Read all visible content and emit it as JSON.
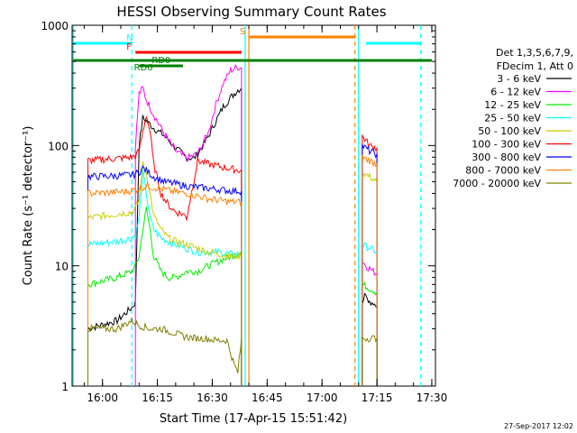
{
  "chart_data": {
    "type": "line",
    "title": "HESSI Observing Summary Count Rates",
    "xlabel": "Start Time (17-Apr-15 15:51:42)",
    "ylabel": "Count Rate (s⁻¹ detector⁻¹)",
    "yscale": "log",
    "ylim": [
      1,
      1000
    ],
    "xlim": [
      "15:51:42",
      "17:31:00"
    ],
    "x_ticks": [
      "16:00",
      "16:15",
      "16:30",
      "16:45",
      "17:00",
      "17:15",
      "17:30"
    ],
    "y_ticks": [
      "1",
      "10",
      "100",
      "1000"
    ],
    "grid": false,
    "legend_position": "right",
    "legend_header": [
      "Det 1,3,5,6,7,9,",
      "FDecim 1, Att 0"
    ],
    "footer": "27-Sep-2017 12:02",
    "series": [
      {
        "name": "3 - 6 keV",
        "color": "#000000",
        "segments": [
          {
            "x": [
              "15:56",
              "16:04",
              "16:08",
              "16:09",
              "16:10",
              "16:11",
              "16:12",
              "16:14",
              "16:17",
              "16:20",
              "16:23",
              "16:25",
              "16:27",
              "16:29",
              "16:31",
              "16:33",
              "16:35",
              "16:37",
              "16:38"
            ],
            "y": [
              3,
              3.5,
              4.5,
              5,
              100,
              170,
              160,
              140,
              120,
              95,
              80,
              78,
              95,
              120,
              160,
              210,
              250,
              290,
              300
            ]
          },
          {
            "x": [
              "17:11",
              "17:12",
              "17:13",
              "17:14",
              "17:15"
            ],
            "y": [
              5,
              6,
              5,
              5,
              4.5
            ]
          }
        ]
      },
      {
        "name": "6 - 12 keV",
        "color": "#ff00ff",
        "segments": [
          {
            "x": [
              "16:09",
              "16:10",
              "16:11",
              "16:12",
              "16:14",
              "16:16",
              "16:18",
              "16:20",
              "16:23",
              "16:26",
              "16:29",
              "16:31",
              "16:33",
              "16:35",
              "16:37",
              "16:38"
            ],
            "y": [
              100,
              270,
              300,
              240,
              180,
              140,
              110,
              90,
              78,
              85,
              130,
              220,
              330,
              420,
              450,
              440
            ]
          },
          {
            "x": [
              "17:11",
              "17:12",
              "17:13",
              "17:14",
              "17:15"
            ],
            "y": [
              11,
              10,
              9.5,
              9,
              8.5
            ]
          }
        ]
      },
      {
        "name": "12 - 25 keV",
        "color": "#00ee00",
        "segments": [
          {
            "x": [
              "15:56",
              "16:04",
              "16:08",
              "16:09",
              "16:10",
              "16:11",
              "16:12",
              "16:13",
              "16:14",
              "16:16",
              "16:18",
              "16:20",
              "16:23",
              "16:26",
              "16:29",
              "16:32",
              "16:35",
              "16:38"
            ],
            "y": [
              7,
              8,
              9,
              10,
              12,
              20,
              30,
              20,
              12,
              9,
              8,
              8,
              9,
              9,
              10,
              11,
              12,
              13
            ]
          },
          {
            "x": [
              "17:11",
              "17:13",
              "17:15"
            ],
            "y": [
              7,
              6.5,
              6
            ]
          }
        ]
      },
      {
        "name": "25 - 50 keV",
        "color": "#00ffff",
        "segments": [
          {
            "x": [
              "15:56",
              "16:04",
              "16:08",
              "16:09",
              "16:10",
              "16:11",
              "16:12",
              "16:13",
              "16:14",
              "16:16",
              "16:18",
              "16:20",
              "16:23",
              "16:26",
              "16:29",
              "16:32",
              "16:35",
              "16:38"
            ],
            "y": [
              15,
              16,
              17,
              18,
              25,
              60,
              40,
              25,
              20,
              17,
              16,
              15,
              14,
              13,
              13,
              13,
              12.5,
              12.5
            ]
          },
          {
            "x": [
              "17:11",
              "17:13",
              "17:15"
            ],
            "y": [
              15,
              14,
              13
            ]
          }
        ]
      },
      {
        "name": "50 - 100 keV",
        "color": "#cccc00",
        "segments": [
          {
            "x": [
              "15:56",
              "16:04",
              "16:08",
              "16:09",
              "16:10",
              "16:11",
              "16:12",
              "16:13",
              "16:14",
              "16:16",
              "16:18",
              "16:20",
              "16:23",
              "16:26",
              "16:29",
              "16:32",
              "16:35",
              "16:38"
            ],
            "y": [
              25,
              27,
              28,
              30,
              35,
              70,
              60,
              40,
              26,
              20,
              17,
              16,
              15,
              14,
              13,
              12.5,
              12,
              12
            ]
          },
          {
            "x": [
              "17:11",
              "17:13",
              "17:15"
            ],
            "y": [
              60,
              55,
              50
            ]
          }
        ]
      },
      {
        "name": "100 - 300 keV",
        "color": "#ff0000",
        "segments": [
          {
            "x": [
              "15:56",
              "16:04",
              "16:08",
              "16:09",
              "16:10",
              "16:11",
              "16:12",
              "16:13",
              "16:14",
              "16:16",
              "16:18",
              "16:20",
              "16:22",
              "16:23",
              "16:26",
              "16:29",
              "16:32",
              "16:35",
              "16:38"
            ],
            "y": [
              75,
              78,
              80,
              82,
              90,
              130,
              180,
              130,
              70,
              40,
              32,
              28,
              27,
              25,
              75,
              70,
              67,
              64,
              62
            ]
          },
          {
            "x": [
              "17:11",
              "17:12",
              "17:13",
              "17:15"
            ],
            "y": [
              120,
              110,
              100,
              95
            ]
          }
        ]
      },
      {
        "name": "300 - 800 keV",
        "color": "#0000ff",
        "segments": [
          {
            "x": [
              "15:56",
              "16:04",
              "16:08",
              "16:09",
              "16:10",
              "16:11",
              "16:12",
              "16:14",
              "16:17",
              "16:20",
              "16:23",
              "16:26",
              "16:29",
              "16:32",
              "16:35",
              "16:38"
            ],
            "y": [
              55,
              56,
              57,
              58,
              60,
              65,
              62,
              55,
              50,
              48,
              46,
              45,
              44,
              43,
              42,
              42
            ]
          },
          {
            "x": [
              "17:11",
              "17:13",
              "17:15"
            ],
            "y": [
              100,
              90,
              85
            ]
          }
        ]
      },
      {
        "name": "800 - 7000 keV",
        "color": "#ff8000",
        "segments": [
          {
            "x": [
              "15:56",
              "16:04",
              "16:08",
              "16:09",
              "16:10",
              "16:11",
              "16:12",
              "16:14",
              "16:17",
              "16:20",
              "16:23",
              "16:26",
              "16:29",
              "16:32",
              "16:35",
              "16:38"
            ],
            "y": [
              40,
              41,
              42,
              43,
              44,
              45,
              46,
              45,
              43,
              41,
              40,
              38,
              36,
              35,
              34,
              34
            ]
          },
          {
            "x": [
              "17:11",
              "17:13",
              "17:15"
            ],
            "y": [
              80,
              75,
              70
            ]
          }
        ]
      },
      {
        "name": "7000 - 20000 keV",
        "color": "#808000",
        "segments": [
          {
            "x": [
              "15:56",
              "16:04",
              "16:08",
              "16:10",
              "16:13",
              "16:16",
              "16:19",
              "16:22",
              "16:25",
              "16:28",
              "16:31",
              "16:34",
              "16:36",
              "16:37",
              "16:38"
            ],
            "y": [
              3,
              3,
              3.5,
              3.2,
              3,
              3,
              2.8,
              2.6,
              2.5,
              2.5,
              2.4,
              2.4,
              1.5,
              1.3,
              2.5
            ]
          },
          {
            "x": [
              "17:11",
              "17:13",
              "17:15"
            ],
            "y": [
              2.5,
              2.5,
              2.5
            ]
          }
        ]
      }
    ],
    "status_bars": [
      {
        "label": "",
        "color": "#00ffff",
        "x1": "15:52",
        "x2": "16:08"
      },
      {
        "label": "N",
        "color": "#00ffff",
        "x1": "16:09",
        "x2": "16:09"
      },
      {
        "label": "",
        "color": "#00ffff",
        "x1": "17:12",
        "x2": "17:27"
      },
      {
        "label": "F",
        "color": "#ff0000",
        "x1": "16:09",
        "x2": "16:38"
      },
      {
        "label": "S",
        "color": "#ff8000",
        "x1": "16:40",
        "x2": "17:09"
      },
      {
        "label": "",
        "color": "#008000",
        "x1": "15:52",
        "x2": "17:30"
      },
      {
        "label": "RD0",
        "color": "#008000",
        "x1": "16:10",
        "x2": "16:14"
      },
      {
        "label": "RD6",
        "color": "#008000",
        "x1": "16:14",
        "x2": "16:22"
      }
    ],
    "vertical_markers": [
      {
        "x": "15:52",
        "color": "#00ffff",
        "style": "solid"
      },
      {
        "x": "16:08",
        "color": "#00ffff",
        "style": "dashed"
      },
      {
        "x": "16:39",
        "color": "#00ffff",
        "style": "solid"
      },
      {
        "x": "16:40",
        "color": "#ff8000",
        "style": "solid"
      },
      {
        "x": "17:09",
        "color": "#ff8000",
        "style": "dashed"
      },
      {
        "x": "17:10",
        "color": "#00ffff",
        "style": "solid"
      },
      {
        "x": "17:27",
        "color": "#00ffff",
        "style": "dashed"
      }
    ]
  }
}
